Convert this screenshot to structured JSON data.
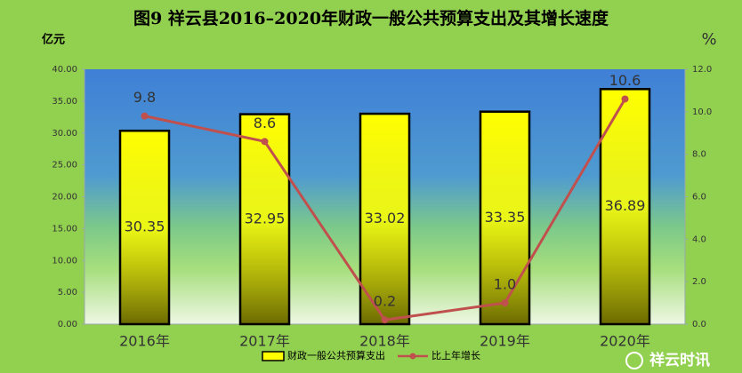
{
  "chart_data": {
    "type": "bar",
    "title": "图9  祥云县2016–2020年财政一般公共预算支出及其增长速度",
    "y_label": "亿元",
    "y2_label": "%",
    "categories": [
      "2016年",
      "2017年",
      "2018年",
      "2019年",
      "2020年"
    ],
    "series": [
      {
        "name": "财政一般公共预算支出",
        "type": "bar",
        "color": "#ffff00",
        "values": [
          30.35,
          32.95,
          33.02,
          33.35,
          36.89
        ]
      },
      {
        "name": "比上年增长",
        "type": "line",
        "axis": "y2",
        "color": "#c0504d",
        "values": [
          9.8,
          8.6,
          0.2,
          1.0,
          10.6
        ],
        "value_labels": [
          "9.8",
          "8.6",
          "0.2",
          "1.0",
          "10.6"
        ]
      }
    ],
    "ylim": [
      0,
      40
    ],
    "yticks": [
      {
        "value": 0,
        "label": "0.00"
      },
      {
        "value": 5,
        "label": "5.00"
      },
      {
        "value": 10,
        "label": "10.00"
      },
      {
        "value": 15,
        "label": "15.00"
      },
      {
        "value": 20,
        "label": "20.00"
      },
      {
        "value": 25,
        "label": "25.00"
      },
      {
        "value": 30,
        "label": "30.00"
      },
      {
        "value": 35,
        "label": "35.00"
      },
      {
        "value": 40,
        "label": "40.00"
      }
    ],
    "y2lim": [
      0,
      12
    ],
    "y2ticks": [
      {
        "value": 0,
        "label": "0.0"
      },
      {
        "value": 2,
        "label": "2.0"
      },
      {
        "value": 4,
        "label": "4.0"
      },
      {
        "value": 6,
        "label": "6.0"
      },
      {
        "value": 8,
        "label": "8.0"
      },
      {
        "value": 10,
        "label": "10.0"
      },
      {
        "value": 12,
        "label": "12.0"
      }
    ],
    "watermark": "祥云时讯"
  }
}
